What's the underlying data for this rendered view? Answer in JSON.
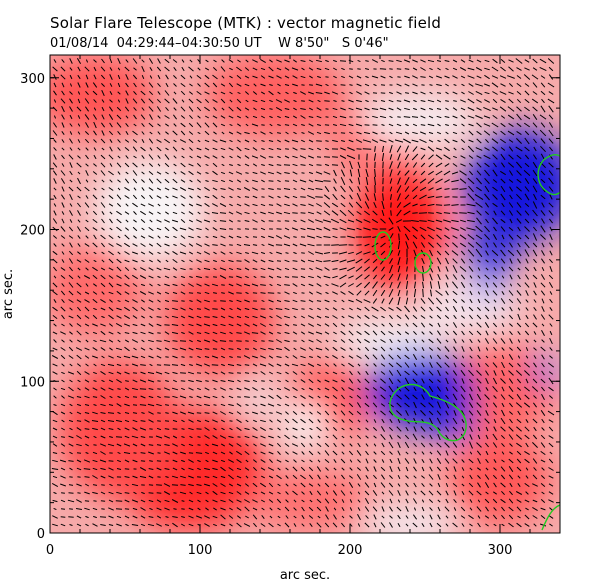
{
  "title": "Solar Flare Telescope (MTK) : vector magnetic field",
  "subtitle": {
    "date": "01/08/14",
    "time_range": "04:29:44–04:30:50 UT",
    "lon": "W 8'50\"",
    "lat": "S 0'46\""
  },
  "axes": {
    "xlabel": "arc sec.",
    "ylabel": "arc sec.",
    "xlim": [
      0,
      340
    ],
    "ylim": [
      0,
      315
    ],
    "xticks": [
      0,
      100,
      200,
      300
    ],
    "yticks": [
      0,
      100,
      200,
      300
    ]
  },
  "colors": {
    "positive": "#ff1a1a",
    "negative": "#1010e0",
    "contour": "#22cc22",
    "vector": "#000000"
  }
}
